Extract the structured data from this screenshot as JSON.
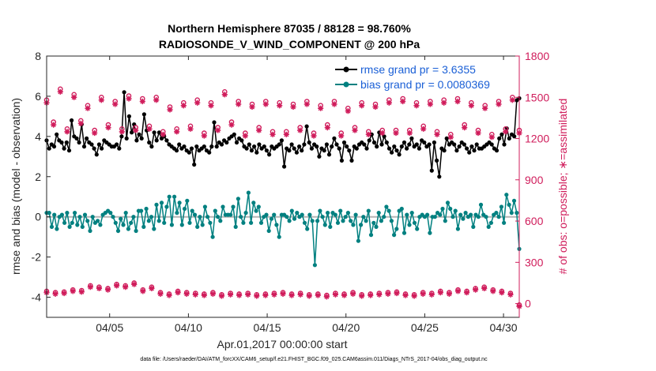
{
  "chart_data": {
    "type": "line",
    "title_line1": "Northern Hemisphere 87035 / 88128 = 98.760%",
    "title_line2": "RADIOSONDE_V_WIND_COMPONENT @ 200 hPa",
    "xlabel": "Apr.01,2017 00:00:00 start",
    "ylabel": "rmse and bias (model - observation)",
    "y2label": "# of obs: o=possible; ∗=assimilated",
    "footnote": "data file: /Users/raeder/DAI/ATM_forcXX/CAM6_setup/f.e21.FHIST_BGC.f09_025.CAM6assim.011/Diags_NTrS_2017-04/obs_diag_output.nc",
    "xlim": [
      1,
      31
    ],
    "ylim": [
      -5,
      8
    ],
    "y2lim": [
      -100,
      1800
    ],
    "x_ticks": [
      5,
      10,
      15,
      20,
      25,
      30
    ],
    "x_tick_labels": [
      "04/05",
      "04/10",
      "04/15",
      "04/20",
      "04/25",
      "04/30"
    ],
    "y_ticks": [
      -4,
      -2,
      0,
      2,
      4,
      6,
      8
    ],
    "y_tick_labels": [
      "-4",
      "-2",
      "0",
      "2",
      "4",
      "6",
      "8"
    ],
    "y2_ticks": [
      0,
      300,
      600,
      900,
      1200,
      1500,
      1800
    ],
    "y2_tick_labels": [
      "0",
      "300",
      "600",
      "900",
      "1200",
      "1500",
      "1800"
    ],
    "legend_position": "top-right",
    "series": [
      {
        "name": "rmse grand pr = 3.6355",
        "color": "#000000",
        "axis": "left",
        "marker": "dot",
        "values": [
          3.8,
          3.4,
          3.6,
          3.5,
          4.1,
          3.8,
          3.7,
          3.4,
          3.7,
          3.3,
          4.8,
          4.0,
          3.9,
          3.7,
          4.6,
          3.5,
          3.9,
          3.7,
          3.6,
          3.4,
          3.1,
          3.6,
          3.4,
          3.8,
          3.7,
          3.6,
          3.5,
          3.5,
          3.6,
          3.4,
          4.0,
          6.2,
          3.9,
          5.0,
          4.2,
          4.6,
          3.8,
          4.1,
          3.9,
          5.1,
          4.3,
          3.7,
          3.5,
          4.2,
          3.8,
          4.2,
          3.9,
          4.0,
          3.8,
          3.6,
          3.5,
          3.4,
          3.3,
          3.6,
          3.4,
          3.5,
          3.3,
          3.2,
          3.4,
          2.6,
          3.5,
          3.3,
          3.4,
          3.5,
          3.3,
          3.2,
          3.5,
          4.7,
          3.5,
          3.7,
          3.6,
          3.8,
          3.7,
          3.9,
          4.0,
          4.1,
          3.7,
          3.9,
          3.8,
          3.5,
          3.4,
          3.6,
          3.3,
          3.5,
          3.2,
          3.6,
          3.4,
          3.5,
          3.3,
          3.1,
          3.5,
          3.4,
          3.5,
          3.6,
          3.8,
          2.5,
          3.4,
          3.3,
          3.6,
          3.4,
          3.2,
          3.5,
          3.3,
          3.6,
          4.5,
          3.7,
          3.4,
          3.6,
          3.5,
          3.0,
          3.4,
          3.3,
          3.6,
          3.1,
          3.5,
          3.9,
          3.6,
          3.4,
          2.8,
          3.7,
          3.5,
          3.3,
          2.8,
          3.5,
          3.4,
          3.6,
          3.7,
          3.6,
          3.4,
          3.8,
          4.1,
          3.7,
          3.5,
          4.2,
          3.6,
          4.0,
          3.7,
          3.4,
          3.2,
          3.5,
          3.3,
          3.1,
          3.5,
          3.7,
          3.4,
          3.6,
          3.9,
          3.5,
          3.6,
          3.4,
          3.8,
          3.7,
          3.5,
          3.6,
          2.3,
          3.7,
          2.8,
          2.0,
          3.4,
          3.3,
          3.9,
          3.6,
          3.7,
          3.6,
          3.3,
          3.5,
          3.7,
          3.6,
          3.4,
          3.2,
          3.5,
          3.3,
          3.6,
          3.4,
          3.4,
          3.5,
          3.6,
          3.7,
          3.6,
          3.4,
          3.3,
          3.9,
          4.1,
          3.6,
          4.4,
          3.9,
          4.1,
          4.0,
          5.8,
          5.9
        ]
      },
      {
        "name": "bias grand pr = 0.0080369",
        "color": "#008080",
        "axis": "left",
        "marker": "dot",
        "values": [
          0.2,
          0.2,
          -0.5,
          0.1,
          -0.6,
          0.0,
          0.1,
          -0.3,
          0.2,
          -0.5,
          -0.3,
          0.2,
          -0.4,
          0.0,
          -0.5,
          0.1,
          -0.2,
          -0.7,
          0.0,
          -0.3,
          -0.2,
          -0.4,
          0.1,
          0.2,
          0.3,
          0.2,
          0.0,
          -0.3,
          -0.7,
          -0.1,
          -0.4,
          0.2,
          -0.6,
          -0.3,
          0.0,
          -0.7,
          0.3,
          0.3,
          -0.5,
          0.4,
          -0.2,
          0.0,
          -0.6,
          0.6,
          -0.2,
          0.7,
          -0.3,
          0.5,
          1.0,
          -0.4,
          1.0,
          0.2,
          0.7,
          -0.4,
          0.4,
          0.8,
          -0.3,
          0.3,
          0.1,
          -0.5,
          0.0,
          -0.4,
          0.5,
          0.0,
          -0.3,
          -1.0,
          0.3,
          0.0,
          -0.2,
          0.5,
          0.1,
          0.1,
          0.1,
          0.5,
          -0.5,
          0.9,
          0.0,
          -0.3,
          0.2,
          1.2,
          -0.3,
          0.7,
          0.3,
          0.5,
          -0.3,
          0.0,
          0.1,
          -0.7,
          -0.1,
          0.1,
          -0.4,
          -1.0,
          0.1,
          0.1,
          0.0,
          -0.2,
          0.3,
          -0.1,
          0.2,
          0.0,
          0.1,
          -0.3,
          -0.6,
          0.1,
          -0.2,
          -2.4,
          -0.2,
          0.3,
          0.0,
          -0.4,
          0.2,
          -0.5,
          0.2,
          0.1,
          -0.3,
          0.3,
          -0.2,
          0.0,
          0.2,
          -0.2,
          -0.4,
          0.1,
          -1.2,
          -0.4,
          0.0,
          -0.2,
          0.3,
          -0.9,
          -0.3,
          -0.5,
          0.2,
          -0.2,
          0.0,
          0.5,
          0.3,
          -0.2,
          -0.9,
          -0.6,
          0.3,
          0.4,
          -0.8,
          0.1,
          -0.4,
          0.2,
          -0.3,
          -0.6,
          0.0,
          0.1,
          0.0,
          0.1,
          -0.8,
          0.0,
          0.0,
          0.2,
          0.1,
          0.4,
          -0.2,
          0.7,
          0.4,
          0.0,
          0.3,
          -0.6,
          0.1,
          -0.1,
          0.2,
          0.0,
          0.1,
          -0.5,
          0.1,
          0.0,
          0.6,
          0.1,
          0.0,
          -0.5,
          -0.3,
          0.1,
          0.2,
          0.0,
          0.5,
          -0.3,
          1.1,
          0.6,
          0.2,
          0.8,
          0.2,
          -1.6
        ]
      },
      {
        "name": "possible",
        "color": "#d01c5b",
        "axis": "right",
        "marker": "circle",
        "values": [
          1480,
          1320,
          1560,
          1270,
          1520,
          1330,
          1440,
          1260,
          1500,
          1300,
          1470,
          1270,
          1510,
          1280,
          1490,
          1290,
          1500,
          1250,
          1430,
          1270,
          1460,
          1290,
          1480,
          1240,
          1460,
          1280,
          1540,
          1320,
          1470,
          1240,
          1450,
          1280,
          1470,
          1250,
          1460,
          1250,
          1450,
          1280,
          1470,
          1240,
          1440,
          1300,
          1470,
          1240,
          1420,
          1280,
          1460,
          1250,
          1450,
          1260,
          1480,
          1260,
          1490,
          1260,
          1460,
          1290,
          1470,
          1250,
          1480,
          1230,
          1490,
          1300,
          1460,
          1260,
          1440,
          1230,
          1470,
          1270,
          1500,
          1260
        ]
      },
      {
        "name": "assimilated",
        "color": "#d01c5b",
        "axis": "right",
        "marker": "star",
        "values": [
          1460,
          1300,
          1540,
          1250,
          1500,
          1310,
          1420,
          1240,
          1480,
          1280,
          1450,
          1250,
          1490,
          1260,
          1470,
          1270,
          1480,
          1230,
          1410,
          1250,
          1440,
          1270,
          1460,
          1220,
          1440,
          1260,
          1520,
          1300,
          1450,
          1220,
          1430,
          1260,
          1450,
          1230,
          1440,
          1230,
          1430,
          1260,
          1450,
          1220,
          1420,
          1280,
          1450,
          1220,
          1400,
          1260,
          1440,
          1230,
          1430,
          1240,
          1460,
          1240,
          1470,
          1240,
          1440,
          1270,
          1450,
          1230,
          1460,
          1210,
          1470,
          1280,
          1440,
          1240,
          1420,
          1210,
          1450,
          1250,
          1480,
          1240
        ]
      },
      {
        "name": "possible_low",
        "color": "#d01c5b",
        "axis": "right",
        "marker": "circle",
        "values": [
          90,
          80,
          85,
          100,
          95,
          130,
          120,
          110,
          140,
          130,
          150,
          100,
          120,
          80,
          70,
          90,
          80,
          75,
          70,
          80,
          65,
          75,
          70,
          75,
          65,
          70,
          75,
          80,
          70,
          75,
          65,
          70,
          60,
          75,
          70,
          80,
          65,
          70,
          75,
          80,
          85,
          70,
          65,
          80,
          75,
          90,
          80,
          100,
          90,
          110,
          120,
          100,
          90,
          75,
          -10
        ]
      },
      {
        "name": "assimilated_low",
        "color": "#d01c5b",
        "axis": "right",
        "marker": "star",
        "values": [
          80,
          70,
          75,
          90,
          85,
          120,
          110,
          100,
          130,
          120,
          140,
          90,
          110,
          70,
          60,
          80,
          70,
          65,
          60,
          70,
          55,
          65,
          60,
          65,
          55,
          60,
          65,
          70,
          60,
          65,
          55,
          60,
          50,
          65,
          60,
          70,
          55,
          60,
          65,
          70,
          75,
          60,
          55,
          70,
          65,
          80,
          70,
          90,
          80,
          100,
          110,
          90,
          80,
          65,
          -20
        ]
      }
    ]
  }
}
